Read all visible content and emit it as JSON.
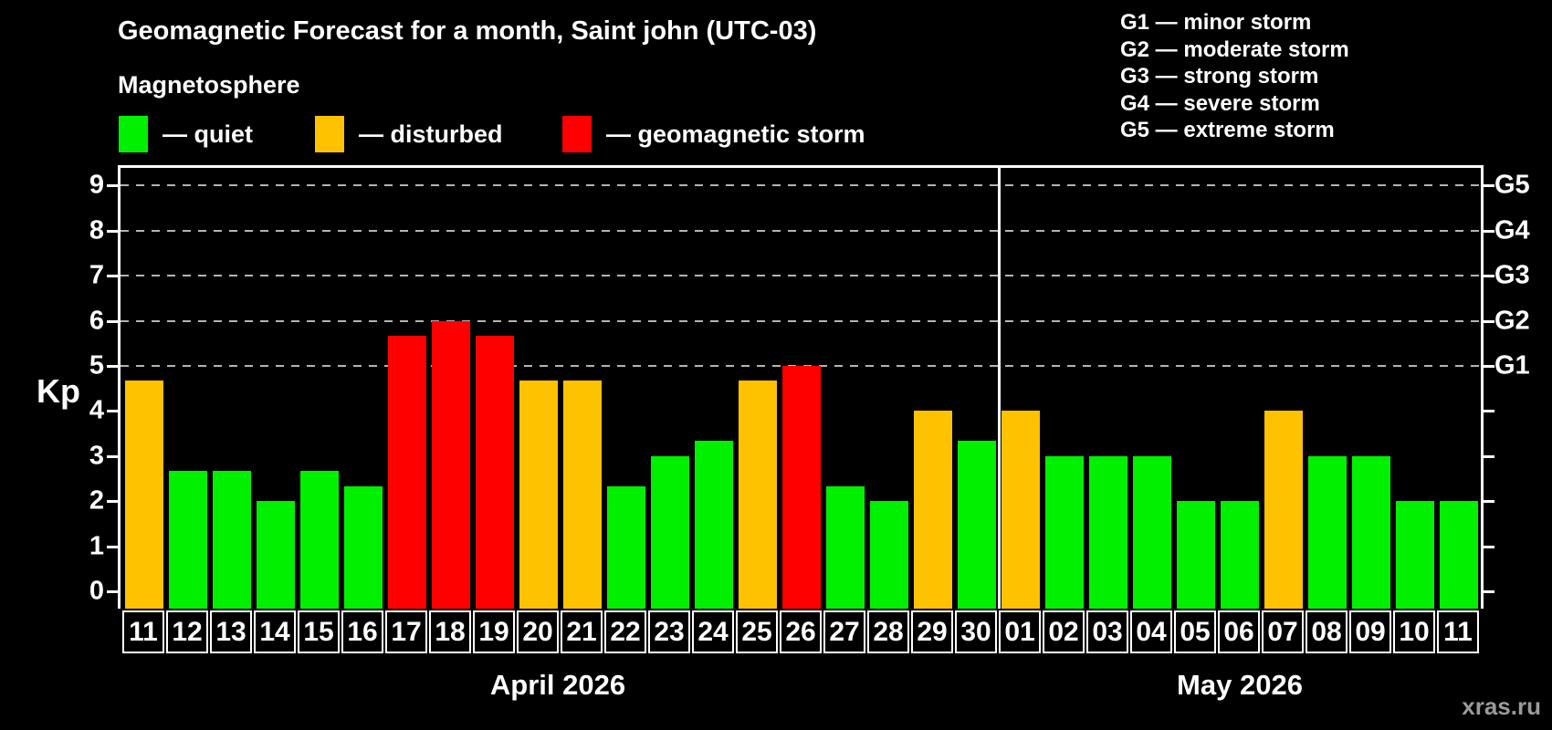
{
  "header": {
    "title": "Geomagnetic Forecast for a month, Saint john (UTC-03)",
    "subtitle": "Magnetosphere",
    "legend": [
      {
        "name": "quiet",
        "label": "— quiet"
      },
      {
        "name": "disturbed",
        "label": "— disturbed"
      },
      {
        "name": "storm",
        "label": "— geomagnetic storm"
      }
    ]
  },
  "gscale_legend": [
    "G1 — minor storm",
    "G2 — moderate storm",
    "G3 — strong storm",
    "G4 — severe storm",
    "G5 — extreme storm"
  ],
  "colors": {
    "quiet": "#00f000",
    "disturbed": "#ffc200",
    "storm": "#ff0000",
    "grid": "#b4b4b4",
    "axis": "#ffffff",
    "text": "#ffffff",
    "watermark": "#9b9b9b"
  },
  "watermark": "xras.ru",
  "chart_data": {
    "type": "bar",
    "title": "Geomagnetic Forecast for a month, Saint john (UTC-03)",
    "ylabel": "Kp",
    "ylim": [
      -0.4,
      9.45
    ],
    "yticks": [
      0,
      1,
      2,
      3,
      4,
      5,
      6,
      7,
      8,
      9
    ],
    "gridlines_at": [
      5,
      6,
      7,
      8,
      9
    ],
    "grid": "dashed",
    "legend_position": "top-left",
    "right_axis": [
      {
        "kp": 5,
        "label": "G1"
      },
      {
        "kp": 6,
        "label": "G2"
      },
      {
        "kp": 7,
        "label": "G3"
      },
      {
        "kp": 8,
        "label": "G4"
      },
      {
        "kp": 9,
        "label": "G5"
      }
    ],
    "status_rule": {
      "quiet": "Kp < 4",
      "disturbed": "4 <= Kp < 5",
      "storm": "Kp >= 5"
    },
    "months": [
      {
        "label": "April 2026",
        "days": [
          {
            "day": "11",
            "kp": 4.67,
            "status": "disturbed"
          },
          {
            "day": "12",
            "kp": 2.67,
            "status": "quiet"
          },
          {
            "day": "13",
            "kp": 2.67,
            "status": "quiet"
          },
          {
            "day": "14",
            "kp": 2.0,
            "status": "quiet"
          },
          {
            "day": "15",
            "kp": 2.67,
            "status": "quiet"
          },
          {
            "day": "16",
            "kp": 2.33,
            "status": "quiet"
          },
          {
            "day": "17",
            "kp": 5.67,
            "status": "storm"
          },
          {
            "day": "18",
            "kp": 6.0,
            "status": "storm"
          },
          {
            "day": "19",
            "kp": 5.67,
            "status": "storm"
          },
          {
            "day": "20",
            "kp": 4.67,
            "status": "disturbed"
          },
          {
            "day": "21",
            "kp": 4.67,
            "status": "disturbed"
          },
          {
            "day": "22",
            "kp": 2.33,
            "status": "quiet"
          },
          {
            "day": "23",
            "kp": 3.0,
            "status": "quiet"
          },
          {
            "day": "24",
            "kp": 3.33,
            "status": "quiet"
          },
          {
            "day": "25",
            "kp": 4.67,
            "status": "disturbed"
          },
          {
            "day": "26",
            "kp": 5.0,
            "status": "storm"
          },
          {
            "day": "27",
            "kp": 2.33,
            "status": "quiet"
          },
          {
            "day": "28",
            "kp": 2.0,
            "status": "quiet"
          },
          {
            "day": "29",
            "kp": 4.0,
            "status": "disturbed"
          },
          {
            "day": "30",
            "kp": 3.33,
            "status": "quiet"
          }
        ]
      },
      {
        "label": "May 2026",
        "days": [
          {
            "day": "01",
            "kp": 4.0,
            "status": "disturbed"
          },
          {
            "day": "02",
            "kp": 3.0,
            "status": "quiet"
          },
          {
            "day": "03",
            "kp": 3.0,
            "status": "quiet"
          },
          {
            "day": "04",
            "kp": 3.0,
            "status": "quiet"
          },
          {
            "day": "05",
            "kp": 2.0,
            "status": "quiet"
          },
          {
            "day": "06",
            "kp": 2.0,
            "status": "quiet"
          },
          {
            "day": "07",
            "kp": 4.0,
            "status": "disturbed"
          },
          {
            "day": "08",
            "kp": 3.0,
            "status": "quiet"
          },
          {
            "day": "09",
            "kp": 3.0,
            "status": "quiet"
          },
          {
            "day": "10",
            "kp": 2.0,
            "status": "quiet"
          },
          {
            "day": "11",
            "kp": 2.0,
            "status": "quiet"
          }
        ]
      }
    ]
  }
}
